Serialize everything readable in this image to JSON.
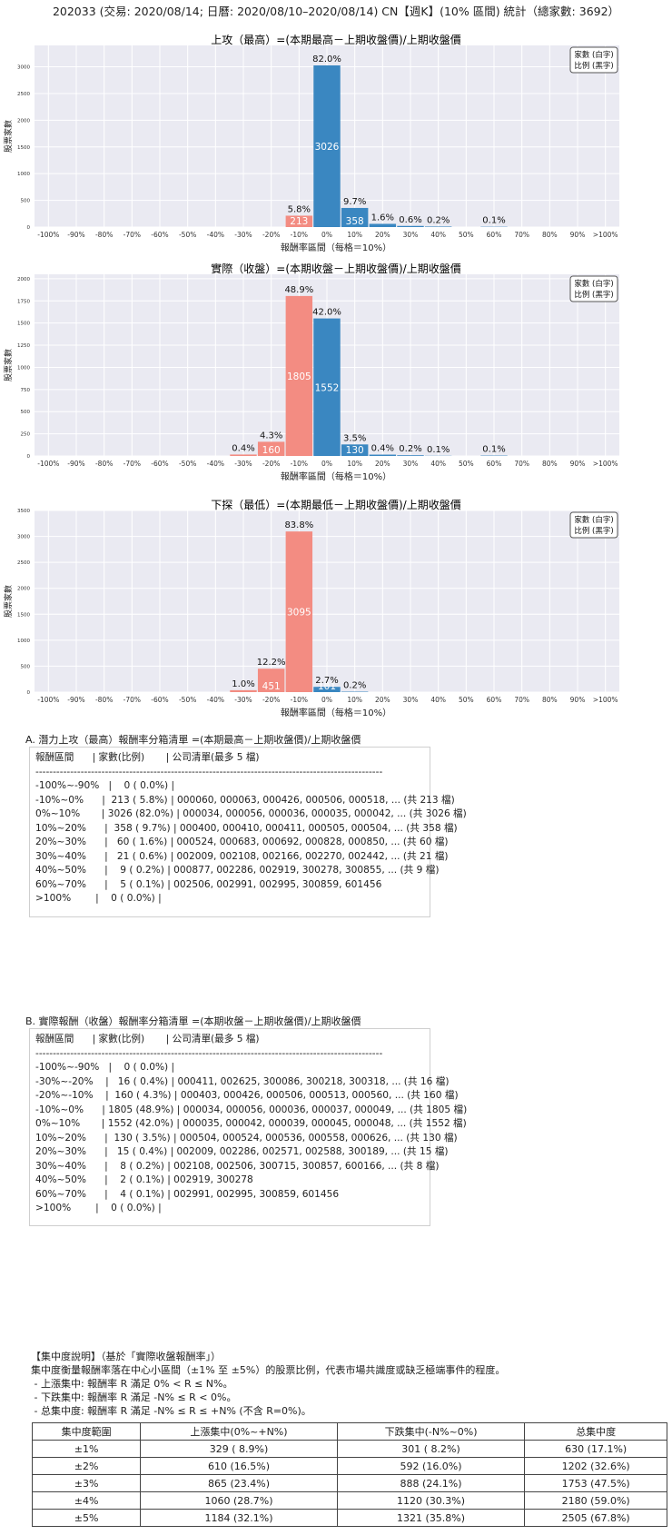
{
  "title": "202033 (交易: 2020/08/14; 日曆: 2020/08/10–2020/08/14) CN【週K】(10% 區間) 統計（總家數: 3692）",
  "legend_lines": [
    "家數 (白字)",
    "比例 (黑字)"
  ],
  "colors": {
    "positive": "#3a87c1",
    "negative": "#f38c82",
    "plot_bg": "#eaeaf2",
    "grid": "#ffffff"
  },
  "chart_data": [
    {
      "type": "bar",
      "title": "上攻（最高）=(本期最高－上期收盤價)/上期收盤價",
      "xlabel": "報酬率區間（每格＝10%）",
      "ylabel": "股票家數",
      "categories": [
        "-100%",
        "-90%",
        "-80%",
        "-70%",
        "-60%",
        "-50%",
        "-40%",
        "-30%",
        "-20%",
        "-10%",
        "0%",
        "10%",
        "20%",
        "30%",
        "40%",
        "50%",
        "60%",
        "70%",
        "80%",
        "90%",
        ">100%"
      ],
      "values": [
        0,
        0,
        0,
        0,
        0,
        0,
        0,
        0,
        0,
        213,
        3026,
        358,
        60,
        21,
        9,
        0,
        5,
        0,
        0,
        0,
        0
      ],
      "count_labels": [
        "",
        "",
        "",
        "",
        "",
        "",
        "",
        "",
        "",
        "213",
        "3026",
        "358",
        "",
        "",
        "",
        "",
        "",
        "",
        "",
        "",
        ""
      ],
      "pct_labels": [
        "",
        "",
        "",
        "",
        "",
        "",
        "",
        "",
        "",
        "5.8%",
        "82.0%",
        "9.7%",
        "1.6%",
        "0.6%",
        "0.2%",
        "",
        "0.1%",
        "",
        "",
        "",
        ""
      ],
      "yticks": [
        0,
        500,
        1000,
        1500,
        2000,
        2500,
        3000
      ],
      "ylim": [
        0,
        3400
      ],
      "grid": true,
      "legend_placement": "top-right"
    },
    {
      "type": "bar",
      "title": "實際（收盤）=(本期收盤－上期收盤價)/上期收盤價",
      "xlabel": "報酬率區間（每格＝10%）",
      "ylabel": "股票家數",
      "categories": [
        "-100%",
        "-90%",
        "-80%",
        "-70%",
        "-60%",
        "-50%",
        "-40%",
        "-30%",
        "-20%",
        "-10%",
        "0%",
        "10%",
        "20%",
        "30%",
        "40%",
        "50%",
        "60%",
        "70%",
        "80%",
        "90%",
        ">100%"
      ],
      "values": [
        0,
        0,
        0,
        0,
        0,
        0,
        0,
        16,
        160,
        1805,
        1552,
        130,
        15,
        8,
        2,
        0,
        4,
        0,
        0,
        0,
        0
      ],
      "count_labels": [
        "",
        "",
        "",
        "",
        "",
        "",
        "",
        "",
        "160",
        "1805",
        "1552",
        "130",
        "",
        "",
        "",
        "",
        "",
        "",
        "",
        "",
        ""
      ],
      "pct_labels": [
        "",
        "",
        "",
        "",
        "",
        "",
        "",
        "0.4%",
        "4.3%",
        "48.9%",
        "42.0%",
        "3.5%",
        "0.4%",
        "0.2%",
        "0.1%",
        "",
        "0.1%",
        "",
        "",
        "",
        ""
      ],
      "yticks": [
        0,
        250,
        500,
        750,
        1000,
        1250,
        1500,
        1750,
        2000
      ],
      "ylim": [
        0,
        2050
      ],
      "grid": true,
      "legend_placement": "top-right"
    },
    {
      "type": "bar",
      "title": "下探（最低）=(本期最低－上期收盤價)/上期收盤價",
      "xlabel": "報酬率區間（每格＝10%）",
      "ylabel": "股票家數",
      "categories": [
        "-100%",
        "-90%",
        "-80%",
        "-70%",
        "-60%",
        "-50%",
        "-40%",
        "-30%",
        "-20%",
        "-10%",
        "0%",
        "10%",
        "20%",
        "30%",
        "40%",
        "50%",
        "60%",
        "70%",
        "80%",
        "90%",
        ">100%"
      ],
      "values": [
        0,
        0,
        0,
        0,
        0,
        0,
        0,
        37,
        451,
        3095,
        101,
        8,
        0,
        0,
        0,
        0,
        0,
        0,
        0,
        0,
        0
      ],
      "count_labels": [
        "",
        "",
        "",
        "",
        "",
        "",
        "",
        "",
        "451",
        "3095",
        "101",
        "",
        "",
        "",
        "",
        "",
        "",
        "",
        "",
        "",
        ""
      ],
      "pct_labels": [
        "",
        "",
        "",
        "",
        "",
        "",
        "",
        "1.0%",
        "12.2%",
        "83.8%",
        "2.7%",
        "0.2%",
        "",
        "",
        "",
        "",
        "",
        "",
        "",
        "",
        ""
      ],
      "yticks": [
        0,
        500,
        1000,
        1500,
        2000,
        2500,
        3000,
        3500
      ],
      "ylim": [
        0,
        3500
      ],
      "grid": true,
      "legend_placement": "top-right"
    }
  ],
  "section_a": {
    "title": "A. 潛力上攻（最高）報酬率分箱清單 =(本期最高－上期收盤價)/上期收盤價",
    "lines": [
      "報酬區間      | 家數(比例)       | 公司清單(最多 5 檔)",
      "----------------------------------------------------------------------------------------------------",
      "-100%~-90%   |    0 ( 0.0%) |",
      "-10%~0%      |  213 ( 5.8%) | 000060, 000063, 000426, 000506, 000518, ... (共 213 檔)",
      "0%~10%       | 3026 (82.0%) | 000034, 000056, 000036, 000035, 000042, ... (共 3026 檔)",
      "10%~20%      |  358 ( 9.7%) | 000400, 000410, 000411, 000505, 000504, ... (共 358 檔)",
      "20%~30%      |   60 ( 1.6%) | 000524, 000683, 000692, 000828, 000850, ... (共 60 檔)",
      "30%~40%      |   21 ( 0.6%) | 002009, 002108, 002166, 002270, 002442, ... (共 21 檔)",
      "40%~50%      |    9 ( 0.2%) | 000877, 002286, 002919, 300278, 300855, ... (共 9 檔)",
      "60%~70%      |    5 ( 0.1%) | 002506, 002991, 002995, 300859, 601456",
      ">100%        |    0 ( 0.0%) |"
    ]
  },
  "section_b": {
    "title": "B. 實際報酬（收盤）報酬率分箱清單 =(本期收盤－上期收盤價)/上期收盤價",
    "lines": [
      "報酬區間      | 家數(比例)       | 公司清單(最多 5 檔)",
      "----------------------------------------------------------------------------------------------------",
      "-100%~-90%   |    0 ( 0.0%) |",
      "-30%~-20%    |   16 ( 0.4%) | 000411, 002625, 300086, 300218, 300318, ... (共 16 檔)",
      "-20%~-10%    |  160 ( 4.3%) | 000403, 000426, 000506, 000513, 000560, ... (共 160 檔)",
      "-10%~0%      | 1805 (48.9%) | 000034, 000056, 000036, 000037, 000049, ... (共 1805 檔)",
      "0%~10%       | 1552 (42.0%) | 000035, 000042, 000039, 000045, 000048, ... (共 1552 檔)",
      "10%~20%      |  130 ( 3.5%) | 000504, 000524, 000536, 000558, 000626, ... (共 130 檔)",
      "20%~30%      |   15 ( 0.4%) | 002009, 002286, 002571, 002588, 300189, ... (共 15 檔)",
      "30%~40%      |    8 ( 0.2%) | 002108, 002506, 300715, 300857, 600166, ... (共 8 檔)",
      "40%~50%      |    2 ( 0.1%) | 002919, 300278",
      "60%~70%      |    4 ( 0.1%) | 002991, 002995, 300859, 601456",
      ">100%        |    0 ( 0.0%) |"
    ]
  },
  "concentration": {
    "lines": [
      "【集中度說明】（基於「實際收盤報酬率」）",
      "集中度衡量報酬率落在中心小區間（±1% 至 ±5%）的股票比例，代表市場共識度或缺乏極端事件的程度。",
      " - 上漲集中: 報酬率 R 滿足 0% < R ≤ N%。",
      " - 下跌集中: 報酬率 R 滿足 -N% ≤ R < 0%。",
      " - 总集中度: 報酬率 R 滿足 -N% ≤ R ≤ +N% (不含 R=0%)。"
    ],
    "headers": [
      "集中度範圍",
      "上漲集中(0%~+N%)",
      "下跌集中(-N%~0%)",
      "总集中度"
    ],
    "rows": [
      [
        "±1%",
        "329 ( 8.9%)",
        "301 ( 8.2%)",
        "630 (17.1%)"
      ],
      [
        "±2%",
        "610 (16.5%)",
        "592 (16.0%)",
        "1202 (32.6%)"
      ],
      [
        "±3%",
        "865 (23.4%)",
        "888 (24.1%)",
        "1753 (47.5%)"
      ],
      [
        "±4%",
        "1060 (28.7%)",
        "1120 (30.3%)",
        "2180 (59.0%)"
      ],
      [
        "±5%",
        "1184 (32.1%)",
        "1321 (35.8%)",
        "2505 (67.8%)"
      ]
    ]
  }
}
